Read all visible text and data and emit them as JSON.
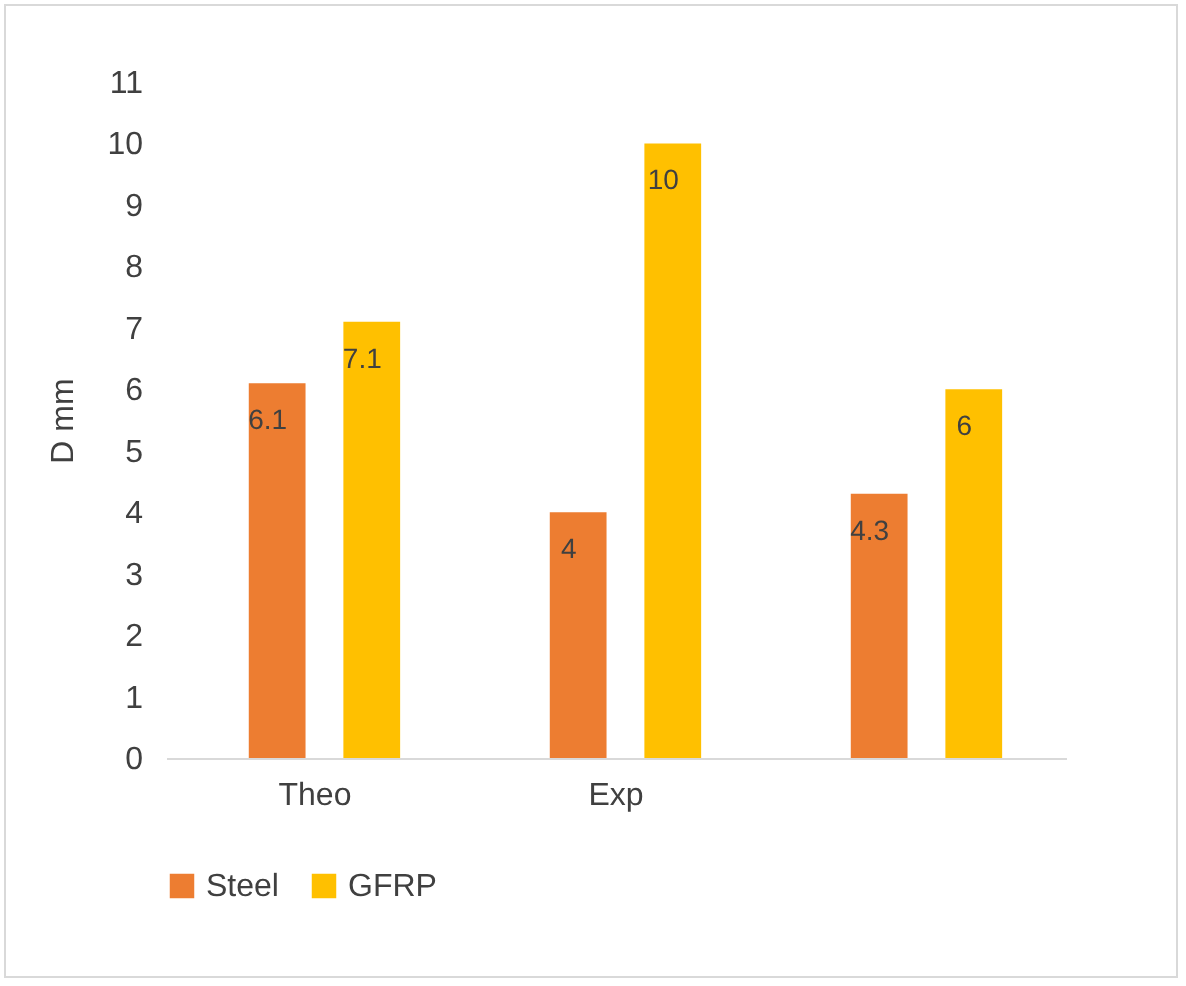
{
  "chart_data": {
    "type": "bar",
    "ylabel": "D mm",
    "categories": [
      "Theo",
      "Exp",
      null
    ],
    "series": [
      {
        "name": "Steel",
        "color": "#ed7d31",
        "values": [
          6.1,
          4,
          4.3
        ]
      },
      {
        "name": "GFRP",
        "color": "#ffc000",
        "values": [
          7.1,
          10,
          6
        ]
      }
    ],
    "ylim": [
      0,
      11
    ],
    "yticks": [
      0,
      1,
      2,
      3,
      4,
      5,
      6,
      7,
      8,
      9,
      10,
      11
    ],
    "grid": false,
    "legend": "bottom",
    "data_labels": true
  }
}
